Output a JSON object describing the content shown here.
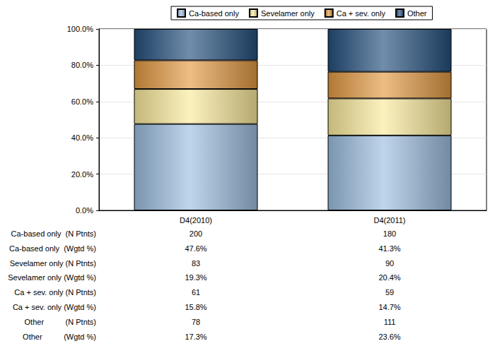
{
  "chart_data": {
    "type": "bar",
    "stacked": true,
    "categories": [
      "D4(2010)",
      "D4(2011)"
    ],
    "series": [
      {
        "name": "Ca-based only",
        "color": "#9dbfe0",
        "values": [
          47.6,
          41.3
        ]
      },
      {
        "name": "Sevelamer only",
        "color": "#fbeb9c",
        "values": [
          19.3,
          20.4
        ]
      },
      {
        "name": "Ca + sev. only",
        "color": "#e39a43",
        "values": [
          15.8,
          14.7
        ]
      },
      {
        "name": "Other",
        "color": "#24507e",
        "values": [
          17.3,
          23.6
        ]
      }
    ],
    "ylim": [
      0,
      100
    ],
    "yticks": [
      {
        "value": 0,
        "label": "0.0%"
      },
      {
        "value": 20,
        "label": "20.0%"
      },
      {
        "value": 40,
        "label": "40.0%"
      },
      {
        "value": 60,
        "label": "60.0%"
      },
      {
        "value": 80,
        "label": "80.0%"
      },
      {
        "value": 100,
        "label": "100.0%"
      }
    ],
    "grid": true,
    "legend": "top",
    "table": [
      {
        "label": "Ca-based only  (N Ptnts)",
        "values": [
          "200",
          "180"
        ]
      },
      {
        "label": "Ca-based only  (Wgtd %)",
        "values": [
          "47.6%",
          "41.3%"
        ]
      },
      {
        "label": "Sevelamer only (N Ptnts)",
        "values": [
          "83",
          "90"
        ]
      },
      {
        "label": "Sevelamer only (Wgtd %)",
        "values": [
          "19.3%",
          "20.4%"
        ]
      },
      {
        "label": "Ca + sev. only (N Ptnts)",
        "values": [
          "61",
          "59"
        ]
      },
      {
        "label": "Ca + sev. only (Wgtd %)",
        "values": [
          "15.8%",
          "14.7%"
        ]
      },
      {
        "label": "Other          (N Ptnts)",
        "values": [
          "78",
          "111"
        ]
      },
      {
        "label": "Other          (Wgtd %)",
        "values": [
          "17.3%",
          "23.6%"
        ]
      }
    ]
  }
}
